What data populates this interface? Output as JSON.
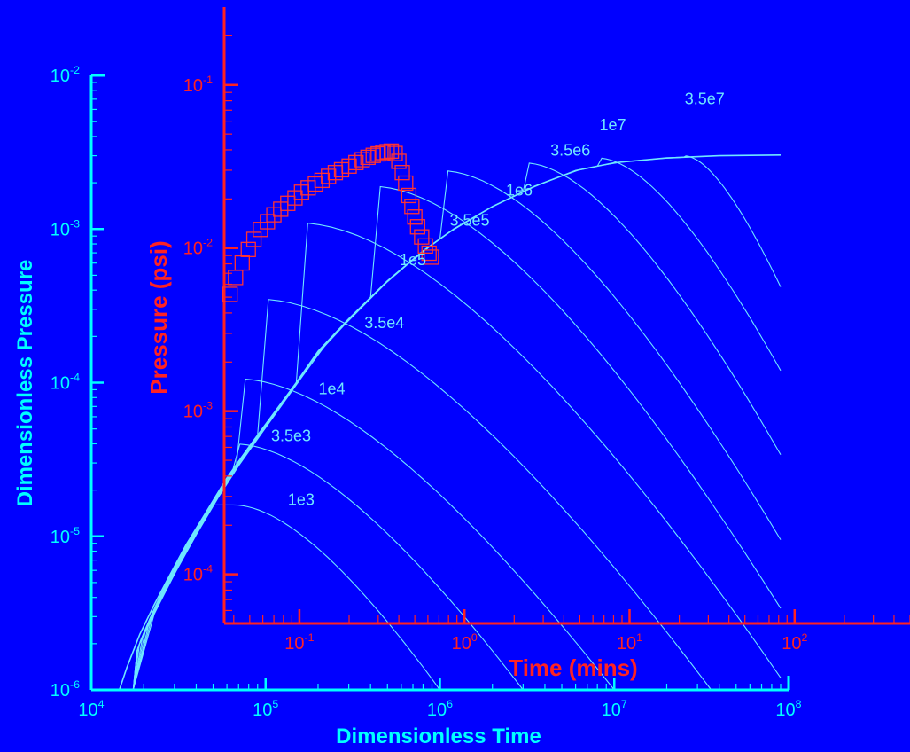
{
  "colors": {
    "background": "#0000ff",
    "dimensionless_axes": "#00ffff",
    "field_axes": "#ff2222",
    "type_curves": "#6fe7ff",
    "field_points": "#ff3333"
  },
  "chart_data": [
    {
      "type": "line",
      "log_scale": {
        "x": true,
        "y": true
      },
      "xlabel": "Dimensionless Time",
      "ylabel": "Dimensionless Pressure",
      "xlim": [
        10000,
        100000000
      ],
      "ylim": [
        1e-06,
        0.01
      ],
      "x_ticks": [
        {
          "value": 10000,
          "mant": "10",
          "exp": "4"
        },
        {
          "value": 100000,
          "mant": "10",
          "exp": "5"
        },
        {
          "value": 1000000,
          "mant": "10",
          "exp": "6"
        },
        {
          "value": 10000000,
          "mant": "10",
          "exp": "7"
        },
        {
          "value": 100000000,
          "mant": "10",
          "exp": "8"
        }
      ],
      "y_ticks": [
        {
          "value": 1e-06,
          "mant": "10",
          "exp": "-6"
        },
        {
          "value": 1e-05,
          "mant": "10",
          "exp": "-5"
        },
        {
          "value": 0.0001,
          "mant": "10",
          "exp": "-4"
        },
        {
          "value": 0.001,
          "mant": "10",
          "exp": "-3"
        },
        {
          "value": 0.01,
          "mant": "10",
          "exp": "-2"
        }
      ],
      "envelope": {
        "x": [
          14500,
          16000,
          19000,
          23000,
          28000,
          35000,
          45000,
          60000,
          80000,
          110000,
          150000,
          200000,
          300000,
          500000,
          800000,
          1200000,
          2000000,
          3500000,
          6000000,
          10000000,
          20000000,
          40000000,
          90000000
        ],
        "y": [
          1e-06,
          1.4e-06,
          2.3e-06,
          3.6e-06,
          5.5e-06,
          8.8e-06,
          1.4e-05,
          2.4e-05,
          3.8e-05,
          6.2e-05,
          0.0001,
          0.00016,
          0.00026,
          0.00046,
          0.00072,
          0.001,
          0.0014,
          0.0019,
          0.0024,
          0.0027,
          0.0029,
          0.003,
          0.00303
        ]
      },
      "series": [
        {
          "name": "1e3",
          "peak": [
            65000,
            1.6e-05
          ],
          "tail_end": [
            1000000,
            1e-06
          ]
        },
        {
          "name": "3.5e3",
          "peak": [
            65000,
            4e-05
          ],
          "tail_end": [
            3000000,
            1e-06
          ]
        },
        {
          "name": "1e4",
          "peak": [
            68000,
            0.000106
          ],
          "tail_end": [
            10000000,
            1e-06
          ]
        },
        {
          "name": "3.5e4",
          "peak": [
            90000,
            0.00035
          ],
          "tail_end": [
            36000000,
            1e-06
          ]
        },
        {
          "name": "1e5",
          "peak": [
            150000,
            0.0011
          ],
          "tail_end": [
            90000000,
            1.2e-06
          ]
        },
        {
          "name": "3.5e5",
          "peak": [
            400000,
            0.0019
          ],
          "tail_end": [
            90000000,
            3.4e-06
          ]
        },
        {
          "name": "1e6",
          "peak": [
            1000000,
            0.0024
          ],
          "tail_end": [
            90000000,
            9.5e-06
          ]
        },
        {
          "name": "3.5e6",
          "peak": [
            3000000,
            0.0027
          ],
          "tail_end": [
            90000000,
            3.4e-05
          ]
        },
        {
          "name": "1e7",
          "peak": [
            8000000,
            0.0029
          ],
          "tail_end": [
            90000000,
            0.00012
          ]
        },
        {
          "name": "3.5e7",
          "peak": [
            25000000,
            0.003
          ],
          "tail_end": [
            90000000,
            0.00042
          ]
        }
      ],
      "curve_labels": [
        {
          "text": "1e3",
          "x": 160000,
          "y": 1.6e-05
        },
        {
          "text": "3.5e3",
          "x": 140000,
          "y": 4.15e-05
        },
        {
          "text": "1e4",
          "x": 240000,
          "y": 8.4e-05
        },
        {
          "text": "3.5e4",
          "x": 480000,
          "y": 0.000226
        },
        {
          "text": "1e5",
          "x": 700000,
          "y": 0.00058
        },
        {
          "text": "3.5e5",
          "x": 1480000,
          "y": 0.00105
        },
        {
          "text": "1e6",
          "x": 2850000,
          "y": 0.00165
        },
        {
          "text": "3.5e6",
          "x": 5600000,
          "y": 0.003
        },
        {
          "text": "1e7",
          "x": 9800000,
          "y": 0.0044
        },
        {
          "text": "3.5e7",
          "x": 33000000,
          "y": 0.0065
        }
      ]
    },
    {
      "type": "scatter",
      "log_scale": {
        "x": true,
        "y": true
      },
      "xlabel": "Time (mins)",
      "ylabel": "Pressure (psi)",
      "xlim": [
        0.035,
        500
      ],
      "ylim": [
        5e-05,
        0.3
      ],
      "x_ticks": [
        {
          "value": 0.1,
          "mant": "10",
          "exp": "-1"
        },
        {
          "value": 1,
          "mant": "10",
          "exp": "0"
        },
        {
          "value": 10,
          "mant": "10",
          "exp": "1"
        },
        {
          "value": 100,
          "mant": "10",
          "exp": "2"
        }
      ],
      "y_ticks": [
        {
          "value": 0.0001,
          "mant": "10",
          "exp": "-4"
        },
        {
          "value": 0.001,
          "mant": "10",
          "exp": "-3"
        },
        {
          "value": 0.01,
          "mant": "10",
          "exp": "-2"
        },
        {
          "value": 0.1,
          "mant": "10",
          "exp": "-1"
        }
      ],
      "points": {
        "x": [
          0.038,
          0.041,
          0.045,
          0.049,
          0.053,
          0.058,
          0.064,
          0.07,
          0.077,
          0.085,
          0.094,
          0.103,
          0.113,
          0.125,
          0.137,
          0.15,
          0.165,
          0.18,
          0.2,
          0.22,
          0.24,
          0.26,
          0.28,
          0.3,
          0.32,
          0.34,
          0.36,
          0.38,
          0.4,
          0.42,
          0.44,
          0.46,
          0.48,
          0.5,
          0.52,
          0.55,
          0.58,
          0.61,
          0.63
        ],
        "y": [
          0.0052,
          0.0066,
          0.0081,
          0.0098,
          0.0113,
          0.013,
          0.0145,
          0.016,
          0.0173,
          0.0188,
          0.0203,
          0.022,
          0.0234,
          0.0247,
          0.026,
          0.0275,
          0.029,
          0.0302,
          0.0318,
          0.0334,
          0.0348,
          0.036,
          0.037,
          0.0378,
          0.0385,
          0.039,
          0.0393,
          0.038,
          0.034,
          0.029,
          0.025,
          0.021,
          0.018,
          0.0155,
          0.0135,
          0.0117,
          0.0103,
          0.0093,
          0.0088
        ]
      }
    }
  ]
}
